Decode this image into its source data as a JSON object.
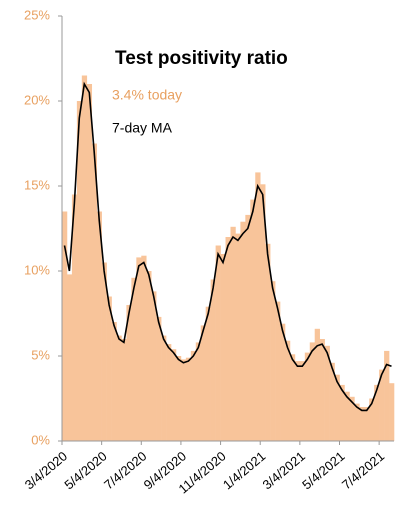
{
  "chart_data": {
    "type": "bar_line",
    "title": "Test positivity ratio",
    "annotation": "3.4% today",
    "categories": [
      "3/4/2020",
      null,
      null,
      null,
      null,
      null,
      null,
      null,
      "5/4/2020",
      null,
      null,
      null,
      null,
      null,
      null,
      null,
      "7/4/2020",
      null,
      null,
      null,
      null,
      null,
      null,
      null,
      "9/4/2020",
      null,
      null,
      null,
      null,
      null,
      null,
      null,
      "11/4/2020",
      null,
      null,
      null,
      null,
      null,
      null,
      null,
      "1/4/2021",
      null,
      null,
      null,
      null,
      null,
      null,
      null,
      "3/4/2021",
      null,
      null,
      null,
      null,
      null,
      null,
      null,
      "5/4/2021",
      null,
      null,
      null,
      null,
      null,
      null,
      null,
      "7/4/2021",
      null,
      null
    ],
    "series": [
      {
        "color": "#f8c49a",
        "values": [
          13.5,
          9.8,
          14.5,
          20,
          21.5,
          21,
          17.5,
          13.5,
          10.5,
          8.5,
          7,
          6.2,
          6,
          8,
          9.6,
          10.8,
          10.9,
          10,
          8.8,
          7.3,
          6.2,
          5.7,
          5.4,
          5,
          4.8,
          4.9,
          5.3,
          5.8,
          6.8,
          7.9,
          9.5,
          11.5,
          11,
          12,
          12.6,
          12.2,
          12.9,
          13.3,
          14.2,
          15.8,
          15.1,
          11.6,
          9.4,
          8.2,
          6.9,
          5.9,
          5.1,
          4.7,
          4.7,
          5.2,
          5.8,
          6.6,
          6,
          5.6,
          4.6,
          3.9,
          3.3,
          2.9,
          2.6,
          2.2,
          2,
          2,
          2.5,
          3.3,
          4.2,
          5.3,
          3.4
        ]
      },
      {
        "name": "7-day MA",
        "color": "#000000",
        "values": [
          11.5,
          10,
          14,
          19,
          21,
          20.5,
          17,
          13,
          10,
          8,
          6.8,
          6,
          5.8,
          7.5,
          9,
          10.3,
          10.5,
          9.8,
          8.5,
          7,
          6,
          5.5,
          5.2,
          4.8,
          4.6,
          4.7,
          5,
          5.5,
          6.5,
          7.5,
          9,
          11,
          10.5,
          11.5,
          12,
          11.8,
          12.2,
          12.5,
          13.5,
          15,
          14.5,
          11,
          9,
          7.8,
          6.5,
          5.5,
          4.8,
          4.4,
          4.4,
          4.8,
          5.3,
          5.6,
          5.7,
          5.2,
          4.3,
          3.5,
          3,
          2.6,
          2.3,
          2,
          1.8,
          1.8,
          2.2,
          3,
          3.9,
          4.5,
          4.4
        ]
      }
    ],
    "ylim": [
      0,
      25
    ],
    "yticks": [
      {
        "value": 0,
        "label": "0%"
      },
      {
        "value": 5,
        "label": "5%"
      },
      {
        "value": 10,
        "label": "10%"
      },
      {
        "value": 15,
        "label": "15%"
      },
      {
        "value": 20,
        "label": "20%"
      },
      {
        "value": 25,
        "label": "25%"
      }
    ],
    "grid": false
  }
}
